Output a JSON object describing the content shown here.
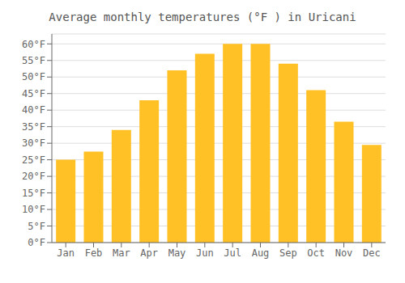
{
  "chart_data": {
    "type": "bar",
    "title": "Average monthly temperatures (°F ) in Uricani",
    "categories": [
      "Jan",
      "Feb",
      "Mar",
      "Apr",
      "May",
      "Jun",
      "Jul",
      "Aug",
      "Sep",
      "Oct",
      "Nov",
      "Dec"
    ],
    "values": [
      25,
      27.5,
      34,
      43,
      52,
      57,
      60,
      60,
      54,
      46,
      36.5,
      29.5
    ],
    "color": "#FFC125",
    "ylim": [
      0,
      63
    ],
    "yticks": [
      {
        "value": 0,
        "label": "0°F"
      },
      {
        "value": 5,
        "label": "5°F"
      },
      {
        "value": 10,
        "label": "10°F"
      },
      {
        "value": 15,
        "label": "15°F"
      },
      {
        "value": 20,
        "label": "20°F"
      },
      {
        "value": 25,
        "label": "25°F"
      },
      {
        "value": 30,
        "label": "30°F"
      },
      {
        "value": 35,
        "label": "35°F"
      },
      {
        "value": 40,
        "label": "40°F"
      },
      {
        "value": 45,
        "label": "45°F"
      },
      {
        "value": 50,
        "label": "50°F"
      },
      {
        "value": 55,
        "label": "55°F"
      },
      {
        "value": 60,
        "label": "60°F"
      }
    ],
    "grid": true
  }
}
